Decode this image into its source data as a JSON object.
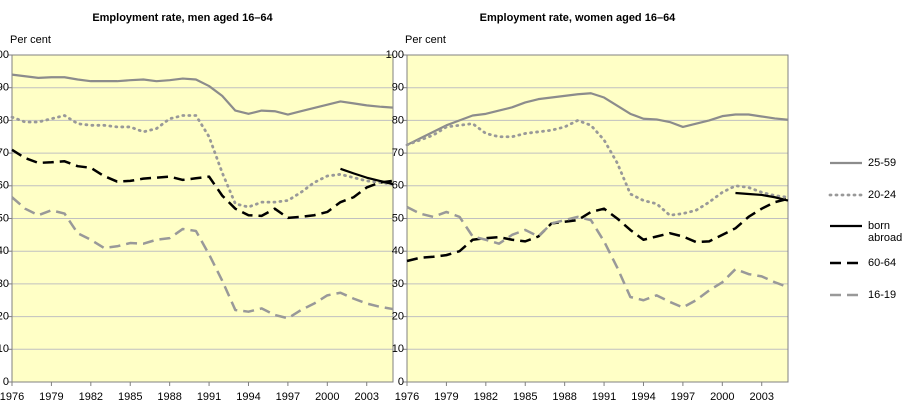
{
  "chart_data": [
    {
      "type": "line",
      "title": "Employment rate, men aged 16–64",
      "y_label": "Per cent",
      "x": [
        1976,
        1977,
        1978,
        1979,
        1980,
        1981,
        1982,
        1983,
        1984,
        1985,
        1986,
        1987,
        1988,
        1989,
        1990,
        1991,
        1992,
        1993,
        1994,
        1995,
        1996,
        1997,
        1998,
        1999,
        2000,
        2001,
        2002,
        2003,
        2004,
        2005
      ],
      "xlim": [
        1976,
        2005
      ],
      "xticks": [
        1976,
        1979,
        1982,
        1985,
        1988,
        1991,
        1994,
        1997,
        2000,
        2003
      ],
      "ylim": [
        0,
        100
      ],
      "yticks": [
        0,
        10,
        20,
        30,
        40,
        50,
        60,
        70,
        80,
        90,
        100
      ],
      "grid": true,
      "series": [
        {
          "name": "25-59",
          "color": "#8c8c8c",
          "dash": "solid",
          "values": [
            94,
            93.5,
            93,
            93.2,
            93.2,
            92.5,
            92,
            92,
            92,
            92.3,
            92.5,
            92,
            92.3,
            92.8,
            92.5,
            90.5,
            87.5,
            83,
            82,
            83,
            82.8,
            81.8,
            82.8,
            83.8,
            84.8,
            85.8,
            85.2,
            84.6,
            84.2,
            83.9
          ]
        },
        {
          "name": "20-24",
          "color": "#999999",
          "dash": "dotted",
          "values": [
            81,
            79.5,
            79.5,
            80.5,
            81.5,
            79,
            78.5,
            78.5,
            78,
            78,
            76.5,
            77.5,
            80.5,
            81.5,
            81.5,
            75,
            64,
            54.5,
            53.5,
            55,
            55,
            55.5,
            58,
            61,
            63,
            63.5,
            62.5,
            61.5,
            61,
            60.5
          ]
        },
        {
          "name": "born abroad",
          "color": "#000000",
          "dash": "solid",
          "values": [
            null,
            null,
            null,
            null,
            null,
            null,
            null,
            null,
            null,
            null,
            null,
            null,
            null,
            null,
            null,
            null,
            null,
            null,
            null,
            null,
            null,
            null,
            null,
            null,
            null,
            65.2,
            63.8,
            62.5,
            61.5,
            60.5
          ]
        },
        {
          "name": "60-64",
          "color": "#000000",
          "dash": "dashed",
          "values": [
            71,
            68.5,
            67,
            67.2,
            67.5,
            66,
            65.5,
            63,
            61.3,
            61.5,
            62.2,
            62.5,
            62.8,
            61.8,
            62.3,
            62.8,
            57,
            53,
            51,
            50.8,
            53,
            50.2,
            50.5,
            51,
            52,
            55,
            56.5,
            59.5,
            61,
            61.5
          ]
        },
        {
          "name": "16-19",
          "color": "#999999",
          "dash": "dashed",
          "values": [
            56.5,
            53,
            51,
            52.5,
            51.5,
            45.5,
            43.5,
            41,
            41.5,
            42.5,
            42.3,
            43.5,
            44,
            46.8,
            46.2,
            39,
            31,
            22,
            21.5,
            22.5,
            20.5,
            19.5,
            22,
            24,
            26.5,
            27.3,
            25.5,
            24,
            23,
            22.3
          ]
        }
      ]
    },
    {
      "type": "line",
      "title": "Employment rate, women aged 16–64",
      "y_label": "Per cent",
      "x": [
        1976,
        1977,
        1978,
        1979,
        1980,
        1981,
        1982,
        1983,
        1984,
        1985,
        1986,
        1987,
        1988,
        1989,
        1990,
        1991,
        1992,
        1993,
        1994,
        1995,
        1996,
        1997,
        1998,
        1999,
        2000,
        2001,
        2002,
        2003,
        2004,
        2005
      ],
      "xlim": [
        1976,
        2005
      ],
      "xticks": [
        1976,
        1979,
        1982,
        1985,
        1988,
        1991,
        1994,
        1997,
        2000,
        2003
      ],
      "ylim": [
        0,
        100
      ],
      "yticks": [
        0,
        10,
        20,
        30,
        40,
        50,
        60,
        70,
        80,
        90,
        100
      ],
      "grid": true,
      "series": [
        {
          "name": "25-59",
          "color": "#8c8c8c",
          "dash": "solid",
          "values": [
            72.5,
            74.5,
            76.5,
            78.5,
            80,
            81.5,
            82,
            83,
            84,
            85.5,
            86.5,
            87,
            87.5,
            88,
            88.3,
            87,
            84.5,
            82,
            80.5,
            80.3,
            79.5,
            78,
            79,
            80,
            81.3,
            81.8,
            81.8,
            81.2,
            80.6,
            80.2
          ]
        },
        {
          "name": "20-24",
          "color": "#999999",
          "dash": "dotted",
          "values": [
            72.5,
            74,
            75.5,
            78,
            78.5,
            79,
            76,
            75,
            75,
            76,
            76.5,
            77,
            78,
            80,
            78.5,
            74,
            67,
            57.5,
            55.5,
            54.5,
            51,
            51.5,
            52.5,
            55,
            58,
            60,
            59.5,
            58,
            57,
            56.5
          ]
        },
        {
          "name": "born abroad",
          "color": "#000000",
          "dash": "solid",
          "values": [
            null,
            null,
            null,
            null,
            null,
            null,
            null,
            null,
            null,
            null,
            null,
            null,
            null,
            null,
            null,
            null,
            null,
            null,
            null,
            null,
            null,
            null,
            null,
            null,
            null,
            57.8,
            57.5,
            57.2,
            56.5,
            55.5
          ]
        },
        {
          "name": "60-64",
          "color": "#000000",
          "dash": "dashed",
          "values": [
            37,
            38,
            38.3,
            38.8,
            40,
            43.5,
            44,
            44.3,
            43.5,
            43,
            44.5,
            48.5,
            49,
            49.5,
            52,
            53,
            50,
            46.5,
            43.5,
            44.5,
            45.5,
            44.5,
            42.8,
            43,
            45,
            47,
            50.5,
            53,
            55,
            56
          ]
        },
        {
          "name": "16-19",
          "color": "#999999",
          "dash": "dashed",
          "values": [
            53.5,
            51.5,
            50.5,
            52,
            50.5,
            44.5,
            43.5,
            42.3,
            45,
            46.5,
            44.5,
            48.5,
            49.5,
            50.5,
            49.5,
            43,
            35,
            26,
            25,
            26.5,
            24.5,
            22.8,
            25,
            28,
            30.5,
            34.5,
            33,
            32.3,
            30.5,
            29
          ]
        }
      ]
    }
  ]
}
